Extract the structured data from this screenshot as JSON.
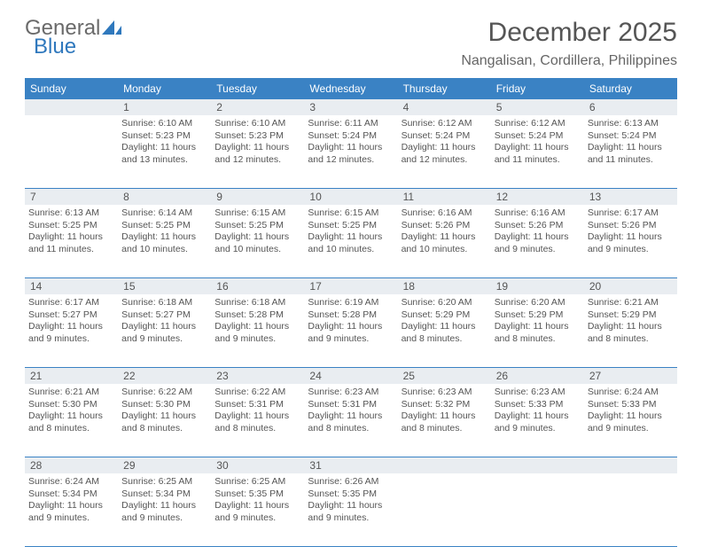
{
  "logo": {
    "text1": "General",
    "text2": "Blue"
  },
  "header": {
    "title": "December 2025",
    "location": "Nangalisan, Cordillera, Philippines"
  },
  "colors": {
    "header_bg": "#3a82c4",
    "daynum_bg": "#e9edf1",
    "border": "#3a82c4",
    "text": "#555555",
    "logo_blue": "#2f78bd"
  },
  "dayNames": [
    "Sunday",
    "Monday",
    "Tuesday",
    "Wednesday",
    "Thursday",
    "Friday",
    "Saturday"
  ],
  "weeks": [
    {
      "nums": [
        "",
        "1",
        "2",
        "3",
        "4",
        "5",
        "6"
      ],
      "cells": [
        null,
        {
          "sunrise": "Sunrise: 6:10 AM",
          "sunset": "Sunset: 5:23 PM",
          "daylight": "Daylight: 11 hours and 13 minutes."
        },
        {
          "sunrise": "Sunrise: 6:10 AM",
          "sunset": "Sunset: 5:23 PM",
          "daylight": "Daylight: 11 hours and 12 minutes."
        },
        {
          "sunrise": "Sunrise: 6:11 AM",
          "sunset": "Sunset: 5:24 PM",
          "daylight": "Daylight: 11 hours and 12 minutes."
        },
        {
          "sunrise": "Sunrise: 6:12 AM",
          "sunset": "Sunset: 5:24 PM",
          "daylight": "Daylight: 11 hours and 12 minutes."
        },
        {
          "sunrise": "Sunrise: 6:12 AM",
          "sunset": "Sunset: 5:24 PM",
          "daylight": "Daylight: 11 hours and 11 minutes."
        },
        {
          "sunrise": "Sunrise: 6:13 AM",
          "sunset": "Sunset: 5:24 PM",
          "daylight": "Daylight: 11 hours and 11 minutes."
        }
      ]
    },
    {
      "nums": [
        "7",
        "8",
        "9",
        "10",
        "11",
        "12",
        "13"
      ],
      "cells": [
        {
          "sunrise": "Sunrise: 6:13 AM",
          "sunset": "Sunset: 5:25 PM",
          "daylight": "Daylight: 11 hours and 11 minutes."
        },
        {
          "sunrise": "Sunrise: 6:14 AM",
          "sunset": "Sunset: 5:25 PM",
          "daylight": "Daylight: 11 hours and 10 minutes."
        },
        {
          "sunrise": "Sunrise: 6:15 AM",
          "sunset": "Sunset: 5:25 PM",
          "daylight": "Daylight: 11 hours and 10 minutes."
        },
        {
          "sunrise": "Sunrise: 6:15 AM",
          "sunset": "Sunset: 5:25 PM",
          "daylight": "Daylight: 11 hours and 10 minutes."
        },
        {
          "sunrise": "Sunrise: 6:16 AM",
          "sunset": "Sunset: 5:26 PM",
          "daylight": "Daylight: 11 hours and 10 minutes."
        },
        {
          "sunrise": "Sunrise: 6:16 AM",
          "sunset": "Sunset: 5:26 PM",
          "daylight": "Daylight: 11 hours and 9 minutes."
        },
        {
          "sunrise": "Sunrise: 6:17 AM",
          "sunset": "Sunset: 5:26 PM",
          "daylight": "Daylight: 11 hours and 9 minutes."
        }
      ]
    },
    {
      "nums": [
        "14",
        "15",
        "16",
        "17",
        "18",
        "19",
        "20"
      ],
      "cells": [
        {
          "sunrise": "Sunrise: 6:17 AM",
          "sunset": "Sunset: 5:27 PM",
          "daylight": "Daylight: 11 hours and 9 minutes."
        },
        {
          "sunrise": "Sunrise: 6:18 AM",
          "sunset": "Sunset: 5:27 PM",
          "daylight": "Daylight: 11 hours and 9 minutes."
        },
        {
          "sunrise": "Sunrise: 6:18 AM",
          "sunset": "Sunset: 5:28 PM",
          "daylight": "Daylight: 11 hours and 9 minutes."
        },
        {
          "sunrise": "Sunrise: 6:19 AM",
          "sunset": "Sunset: 5:28 PM",
          "daylight": "Daylight: 11 hours and 9 minutes."
        },
        {
          "sunrise": "Sunrise: 6:20 AM",
          "sunset": "Sunset: 5:29 PM",
          "daylight": "Daylight: 11 hours and 8 minutes."
        },
        {
          "sunrise": "Sunrise: 6:20 AM",
          "sunset": "Sunset: 5:29 PM",
          "daylight": "Daylight: 11 hours and 8 minutes."
        },
        {
          "sunrise": "Sunrise: 6:21 AM",
          "sunset": "Sunset: 5:29 PM",
          "daylight": "Daylight: 11 hours and 8 minutes."
        }
      ]
    },
    {
      "nums": [
        "21",
        "22",
        "23",
        "24",
        "25",
        "26",
        "27"
      ],
      "cells": [
        {
          "sunrise": "Sunrise: 6:21 AM",
          "sunset": "Sunset: 5:30 PM",
          "daylight": "Daylight: 11 hours and 8 minutes."
        },
        {
          "sunrise": "Sunrise: 6:22 AM",
          "sunset": "Sunset: 5:30 PM",
          "daylight": "Daylight: 11 hours and 8 minutes."
        },
        {
          "sunrise": "Sunrise: 6:22 AM",
          "sunset": "Sunset: 5:31 PM",
          "daylight": "Daylight: 11 hours and 8 minutes."
        },
        {
          "sunrise": "Sunrise: 6:23 AM",
          "sunset": "Sunset: 5:31 PM",
          "daylight": "Daylight: 11 hours and 8 minutes."
        },
        {
          "sunrise": "Sunrise: 6:23 AM",
          "sunset": "Sunset: 5:32 PM",
          "daylight": "Daylight: 11 hours and 8 minutes."
        },
        {
          "sunrise": "Sunrise: 6:23 AM",
          "sunset": "Sunset: 5:33 PM",
          "daylight": "Daylight: 11 hours and 9 minutes."
        },
        {
          "sunrise": "Sunrise: 6:24 AM",
          "sunset": "Sunset: 5:33 PM",
          "daylight": "Daylight: 11 hours and 9 minutes."
        }
      ]
    },
    {
      "nums": [
        "28",
        "29",
        "30",
        "31",
        "",
        "",
        ""
      ],
      "cells": [
        {
          "sunrise": "Sunrise: 6:24 AM",
          "sunset": "Sunset: 5:34 PM",
          "daylight": "Daylight: 11 hours and 9 minutes."
        },
        {
          "sunrise": "Sunrise: 6:25 AM",
          "sunset": "Sunset: 5:34 PM",
          "daylight": "Daylight: 11 hours and 9 minutes."
        },
        {
          "sunrise": "Sunrise: 6:25 AM",
          "sunset": "Sunset: 5:35 PM",
          "daylight": "Daylight: 11 hours and 9 minutes."
        },
        {
          "sunrise": "Sunrise: 6:26 AM",
          "sunset": "Sunset: 5:35 PM",
          "daylight": "Daylight: 11 hours and 9 minutes."
        },
        null,
        null,
        null
      ]
    }
  ]
}
